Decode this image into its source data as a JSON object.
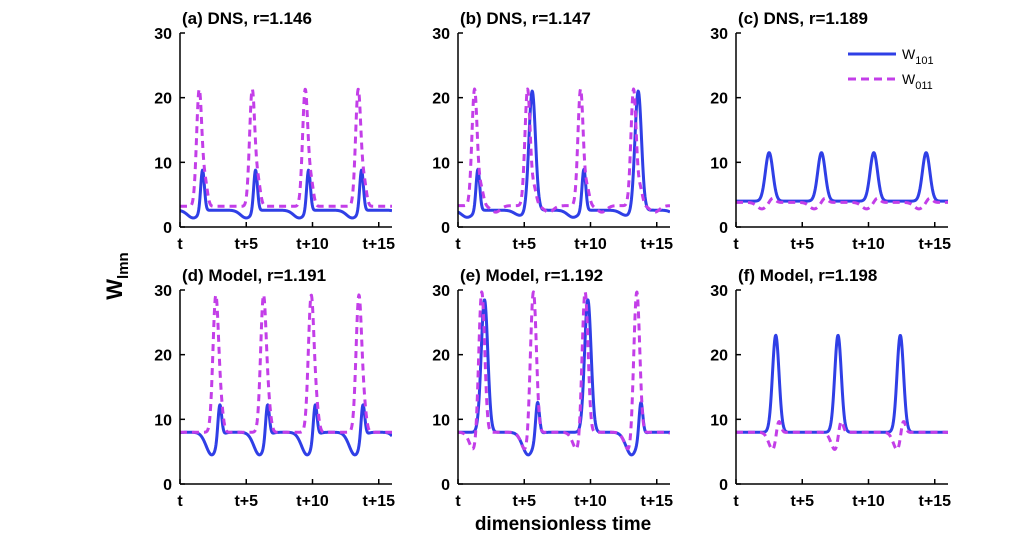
{
  "figure": {
    "ylabel_main": "W",
    "ylabel_sub": "lmn",
    "xlabel": "dimensionless time"
  },
  "legend": {
    "w101_main": "W",
    "w101_sub": "101",
    "w011_main": "W",
    "w011_sub": "011"
  },
  "colors": {
    "w101": "#2f3fe6",
    "w011": "#c33ee8"
  },
  "chart_data": [
    {
      "type": "line",
      "title": "(a) DNS, r=1.146",
      "xlabel": "",
      "ylabel": "W_lmn",
      "xlim": [
        0,
        16
      ],
      "ylim": [
        0,
        30
      ],
      "xticks": [
        0,
        5,
        10,
        15
      ],
      "xtick_labels": [
        "t",
        "t+5",
        "t+10",
        "t+15"
      ],
      "yticks": [
        0,
        10,
        20,
        30
      ],
      "ytick_labels": [
        "0",
        "10",
        "20",
        "30"
      ],
      "series": [
        {
          "name": "W_101",
          "style": "solid",
          "period": 4.0,
          "phase": 1.7,
          "baseline": 2.6,
          "peaks": [
            {
              "dt": 0,
              "h": 6.5,
              "w": 0.2
            }
          ],
          "dips": [
            {
              "dt": -0.7,
              "d": 1.2,
              "w": 0.6
            }
          ]
        },
        {
          "name": "W_011",
          "style": "dashed",
          "period": 4.0,
          "phase": 1.45,
          "baseline": 3.2,
          "peaks": [
            {
              "dt": 0,
              "h": 18,
              "w": 0.28
            },
            {
              "dt": 0.45,
              "h": 3.5,
              "w": 0.25
            }
          ],
          "dips": []
        }
      ]
    },
    {
      "type": "line",
      "title": "(b) DNS, r=1.147",
      "xlabel": "",
      "ylabel": "W_lmn",
      "xlim": [
        0,
        16
      ],
      "ylim": [
        0,
        30
      ],
      "xticks": [
        0,
        5,
        10,
        15
      ],
      "xtick_labels": [
        "t",
        "t+5",
        "t+10",
        "t+15"
      ],
      "yticks": [
        0,
        10,
        20,
        30
      ],
      "ytick_labels": [
        "0",
        "10",
        "20",
        "30"
      ],
      "series": [
        {
          "name": "W_101",
          "style": "solid",
          "period": 8.0,
          "phase": 1.5,
          "baseline": 2.6,
          "peaks": [
            {
              "dt": 0,
              "h": 6.5,
              "w": 0.2
            },
            {
              "dt": 4.1,
              "h": 18.5,
              "w": 0.35
            }
          ],
          "dips": [
            {
              "dt": -0.8,
              "d": 1.1,
              "w": 0.6
            },
            {
              "dt": 3.2,
              "d": 0.8,
              "w": 0.6
            }
          ]
        },
        {
          "name": "W_011",
          "style": "dashed",
          "period": 4.0,
          "phase": 1.25,
          "baseline": 3.3,
          "peaks": [
            {
              "dt": 0,
              "h": 18,
              "w": 0.28
            },
            {
              "dt": 0.5,
              "h": 2.5,
              "w": 0.25
            }
          ],
          "dips": [
            {
              "dt": 1.6,
              "d": 1.0,
              "w": 0.5
            }
          ]
        }
      ]
    },
    {
      "type": "line",
      "title": "(c) DNS, r=1.189",
      "xlabel": "",
      "ylabel": "W_lmn",
      "xlim": [
        0,
        16
      ],
      "ylim": [
        0,
        30
      ],
      "xticks": [
        0,
        5,
        10,
        15
      ],
      "xtick_labels": [
        "t",
        "t+5",
        "t+10",
        "t+15"
      ],
      "yticks": [
        0,
        10,
        20,
        30
      ],
      "ytick_labels": [
        "0",
        "10",
        "20",
        "30"
      ],
      "legend": "top-right",
      "series": [
        {
          "name": "W_101",
          "style": "solid",
          "period": 3.95,
          "phase": 2.5,
          "baseline": 4.0,
          "peaks": [
            {
              "dt": 0,
              "h": 7.5,
              "w": 0.4
            }
          ],
          "dips": []
        },
        {
          "name": "W_011",
          "style": "dashed",
          "period": 3.95,
          "phase": 2.75,
          "baseline": 3.8,
          "peaks": [
            {
              "dt": 0,
              "h": 0.7,
              "w": 0.3
            }
          ],
          "dips": [
            {
              "dt": -0.8,
              "d": 1.0,
              "w": 0.5
            }
          ]
        }
      ]
    },
    {
      "type": "line",
      "title": "(d) Model, r=1.191",
      "xlabel": "",
      "ylabel": "W_lmn",
      "xlim": [
        0,
        16
      ],
      "ylim": [
        0,
        30
      ],
      "xticks": [
        0,
        5,
        10,
        15
      ],
      "xtick_labels": [
        "t",
        "t+5",
        "t+10",
        "t+15"
      ],
      "yticks": [
        0,
        10,
        20,
        30
      ],
      "ytick_labels": [
        "0",
        "10",
        "20",
        "30"
      ],
      "series": [
        {
          "name": "W_101",
          "style": "solid",
          "period": 3.6,
          "phase": 3.0,
          "baseline": 8.0,
          "peaks": [
            {
              "dt": 0,
              "h": 5.5,
              "w": 0.2
            }
          ],
          "dips": [
            {
              "dt": -0.6,
              "d": 3.5,
              "w": 0.6
            }
          ]
        },
        {
          "name": "W_011",
          "style": "dashed",
          "period": 3.6,
          "phase": 2.7,
          "baseline": 8.0,
          "peaks": [
            {
              "dt": 0,
              "h": 21,
              "w": 0.3
            },
            {
              "dt": 0.4,
              "h": 3.0,
              "w": 0.25
            }
          ],
          "dips": []
        }
      ]
    },
    {
      "type": "line",
      "title": "(e) Model, r=1.192",
      "xlabel": "",
      "ylabel": "W_lmn",
      "xlim": [
        0,
        16
      ],
      "ylim": [
        0,
        30
      ],
      "xticks": [
        0,
        5,
        10,
        15
      ],
      "xtick_labels": [
        "t",
        "t+5",
        "t+10",
        "t+15"
      ],
      "yticks": [
        0,
        10,
        20,
        30
      ],
      "ytick_labels": [
        "0",
        "10",
        "20",
        "30"
      ],
      "series": [
        {
          "name": "W_101",
          "style": "solid",
          "period": 7.8,
          "phase": 2.0,
          "baseline": 8.0,
          "peaks": [
            {
              "dt": 0,
              "h": 20.5,
              "w": 0.35
            },
            {
              "dt": 4.0,
              "h": 5.5,
              "w": 0.2
            }
          ],
          "dips": [
            {
              "dt": 3.3,
              "d": 3.5,
              "w": 0.6
            }
          ]
        },
        {
          "name": "W_011",
          "style": "dashed",
          "period": 3.9,
          "phase": 1.95,
          "baseline": 8.0,
          "peaks": [
            {
              "dt": 0,
              "h": 4.5,
              "w": 0.25
            },
            {
              "dt": 3.7,
              "h": 20,
              "w": 0.3
            }
          ],
          "dips": [
            {
              "dt": 3.2,
              "d": 3.0,
              "w": 0.5
            }
          ]
        }
      ]
    },
    {
      "type": "line",
      "title": "(f) Model, r=1.198",
      "xlabel": "",
      "ylabel": "W_lmn",
      "xlim": [
        0,
        16
      ],
      "ylim": [
        0,
        30
      ],
      "xticks": [
        0,
        5,
        10,
        15
      ],
      "xtick_labels": [
        "t",
        "t+5",
        "t+10",
        "t+15"
      ],
      "yticks": [
        0,
        10,
        20,
        30
      ],
      "ytick_labels": [
        "0",
        "10",
        "20",
        "30"
      ],
      "series": [
        {
          "name": "W_101",
          "style": "solid",
          "period": 4.7,
          "phase": 3.0,
          "baseline": 8.0,
          "peaks": [
            {
              "dt": 0,
              "h": 15,
              "w": 0.35
            }
          ],
          "dips": []
        },
        {
          "name": "W_011",
          "style": "dashed",
          "period": 4.7,
          "phase": 3.2,
          "baseline": 8.0,
          "peaks": [
            {
              "dt": 0,
              "h": 2.8,
              "w": 0.25
            }
          ],
          "dips": [
            {
              "dt": -0.4,
              "d": 2.8,
              "w": 0.45
            }
          ]
        }
      ]
    }
  ]
}
